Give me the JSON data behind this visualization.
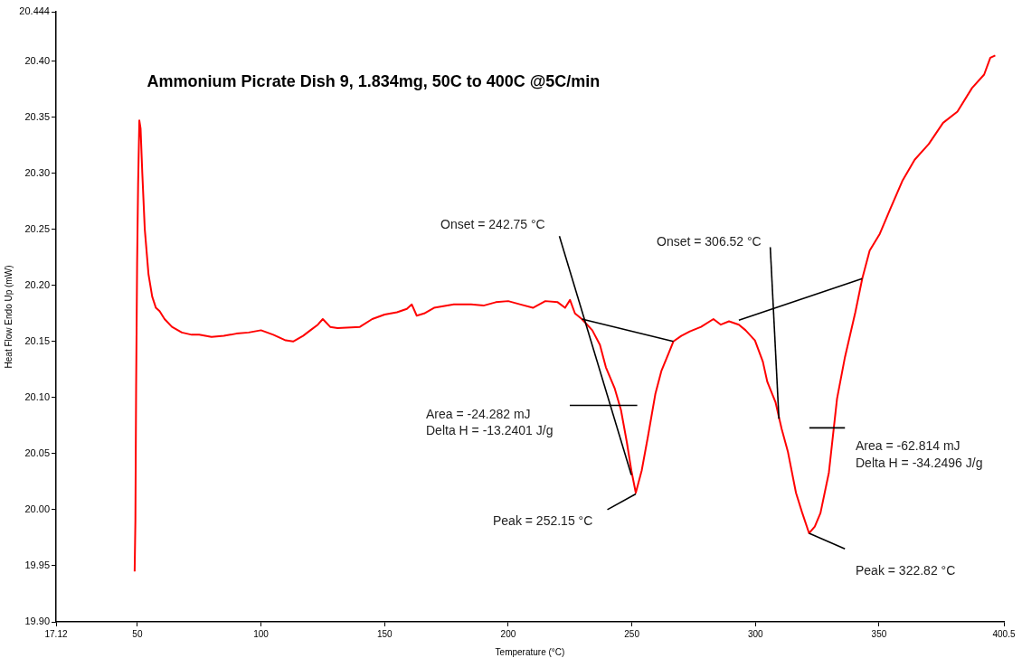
{
  "chart_data": {
    "type": "line",
    "title": "Ammonium Picrate Dish 9, 1.834mg, 50C to 400C @5C/min",
    "xlabel": "Temperature (°C)",
    "ylabel": "Heat Flow Endo Up (mW)",
    "xlim": [
      17.12,
      400.5
    ],
    "xticks": [
      17.12,
      50,
      100,
      150,
      200,
      250,
      300,
      350,
      400.5
    ],
    "ylim": [
      19.9,
      20.444
    ],
    "yticks": [
      {
        "value": 19.9,
        "label": "19.90"
      },
      19.95,
      {
        "value": 20.0,
        "label": "20.00"
      },
      20.05,
      {
        "value": 20.1,
        "label": "20.10"
      },
      20.15,
      {
        "value": 20.2,
        "label": "20.20"
      },
      20.25,
      {
        "value": 20.3,
        "label": "20.30"
      },
      20.35,
      {
        "value": 20.4,
        "label": "20.40"
      },
      20.444
    ],
    "grid": false,
    "legend": false,
    "marker": "none",
    "line_style": "solid",
    "series": [
      {
        "color": "#ff0000",
        "x": [
          48.9,
          49.2,
          49.5,
          49.9,
          50.3,
          50.8,
          51.3,
          52.0,
          53,
          54.5,
          56,
          57.5,
          59,
          61,
          64,
          68,
          72,
          75,
          80,
          85,
          90,
          95,
          100,
          105,
          110,
          113,
          117,
          120,
          123,
          125,
          128,
          131,
          140,
          145,
          150,
          155,
          159,
          161,
          163,
          166,
          170,
          178,
          185,
          190,
          195,
          200,
          205,
          210,
          215,
          220,
          223,
          225,
          227,
          229.8,
          234,
          237.1,
          239.5,
          243.1,
          245.6,
          248,
          249.8,
          251.6,
          254.0,
          256.5,
          259.5,
          262,
          265,
          266.8,
          270,
          273.5,
          278,
          283,
          286,
          289.3,
          293.3,
          296,
          299.8,
          303,
          304.8,
          308.1,
          310.6,
          313.1,
          316.4,
          318.8,
          321.7,
          324,
          326.3,
          329.7,
          333,
          336.2,
          340.4,
          343.2,
          346.2,
          350.3,
          354.5,
          359.4,
          364.4,
          370.1,
          375.9,
          381.7,
          387.6,
          392.5,
          395,
          397
        ],
        "values": [
          19.945,
          19.99,
          20.11,
          20.22,
          20.29,
          20.347,
          20.34,
          20.3,
          20.25,
          20.21,
          20.19,
          20.18,
          20.177,
          20.17,
          20.163,
          20.158,
          20.156,
          20.156,
          20.154,
          20.155,
          20.157,
          20.158,
          20.16,
          20.156,
          20.151,
          20.15,
          20.155,
          20.16,
          20.165,
          20.17,
          20.163,
          20.162,
          20.163,
          20.17,
          20.174,
          20.176,
          20.179,
          20.183,
          20.173,
          20.175,
          20.18,
          20.183,
          20.183,
          20.182,
          20.185,
          20.186,
          20.183,
          20.18,
          20.186,
          20.185,
          20.18,
          20.187,
          20.175,
          20.17,
          20.16,
          20.147,
          20.127,
          20.108,
          20.089,
          20.06,
          20.035,
          20.015,
          20.035,
          20.065,
          20.103,
          20.124,
          20.14,
          20.15,
          20.155,
          20.159,
          20.163,
          20.17,
          20.165,
          20.168,
          20.165,
          20.16,
          20.151,
          20.132,
          20.114,
          20.096,
          20.072,
          20.052,
          20.015,
          19.998,
          19.979,
          19.985,
          19.997,
          20.033,
          20.099,
          20.136,
          20.176,
          20.206,
          20.231,
          20.246,
          20.268,
          20.293,
          20.312,
          20.326,
          20.345,
          20.355,
          20.376,
          20.388,
          20.403,
          20.405
        ]
      },
      {
        "color": "#000000",
        "x": [
          229.8,
          266.8
        ],
        "values": [
          20.17,
          20.15
        ]
      },
      {
        "color": "#000000",
        "x": [
          220.7,
          249.8
        ],
        "values": [
          20.244,
          20.031
        ]
      },
      {
        "color": "#000000",
        "x": [
          224.9,
          252.2
        ],
        "values": [
          20.093,
          20.093
        ]
      },
      {
        "color": "#000000",
        "x": [
          240.1,
          251.6
        ],
        "values": [
          20.0,
          20.014
        ]
      },
      {
        "color": "#000000",
        "x": [
          293.3,
          343.2
        ],
        "values": [
          20.169,
          20.206
        ]
      },
      {
        "color": "#000000",
        "x": [
          306,
          309.5
        ],
        "values": [
          20.234,
          20.081
        ]
      },
      {
        "color": "#000000",
        "x": [
          321.8,
          336.2
        ],
        "values": [
          20.073,
          20.073
        ]
      },
      {
        "color": "#000000",
        "x": [
          321.7,
          336.2
        ],
        "values": [
          19.979,
          19.965
        ]
      }
    ],
    "annotations": [
      "Onset = 242.75 °C",
      "Onset = 306.52 °C",
      "Area = -24.282 mJ",
      "Delta H = -13.2401 J/g",
      "Peak = 252.15 °C",
      "Area = -62.814 mJ",
      "Delta H = -34.2496 J/g",
      "Peak = 322.82 °C"
    ]
  }
}
